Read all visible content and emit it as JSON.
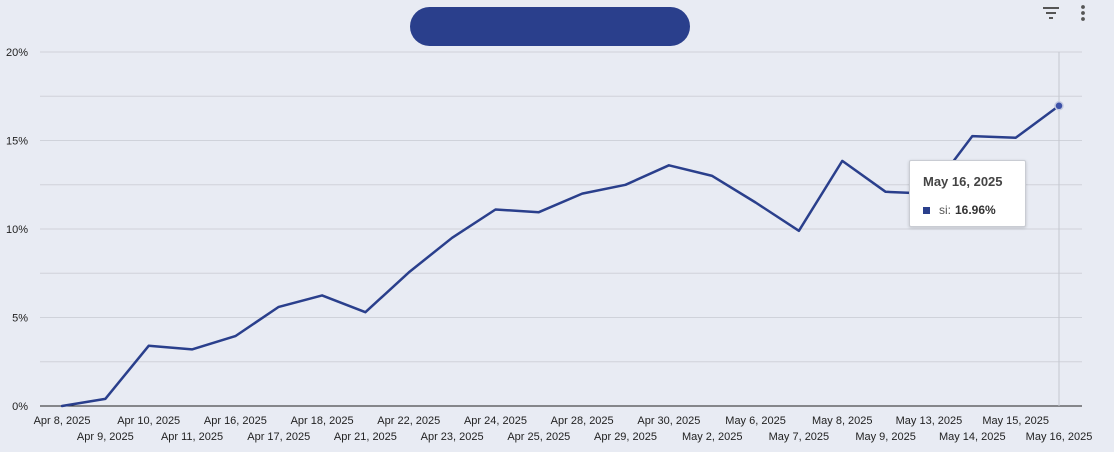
{
  "colors": {
    "background": "#e8ebf3",
    "series": "#2a3f8c",
    "grid": "#cfd2da",
    "axis": "#222222",
    "hover_line": "#c4c7cf"
  },
  "icons": [
    "filter-icon",
    "more-vert-icon"
  ],
  "tooltip": {
    "date": "May 16, 2025",
    "series_label": "si:",
    "value_text": "16.96%"
  },
  "chart_data": {
    "type": "line",
    "title": "",
    "xlabel": "",
    "ylabel": "",
    "grid": true,
    "ylim": [
      0,
      20
    ],
    "y_ticks": [
      "0%",
      "5%",
      "10%",
      "15%",
      "20%"
    ],
    "x": [
      "Apr 8, 2025",
      "Apr 9, 2025",
      "Apr 10, 2025",
      "Apr 11, 2025",
      "Apr 16, 2025",
      "Apr 17, 2025",
      "Apr 18, 2025",
      "Apr 21, 2025",
      "Apr 22, 2025",
      "Apr 23, 2025",
      "Apr 24, 2025",
      "Apr 25, 2025",
      "Apr 28, 2025",
      "Apr 29, 2025",
      "Apr 30, 2025",
      "May 2, 2025",
      "May 6, 2025",
      "May 7, 2025",
      "May 8, 2025",
      "May 9, 2025",
      "May 13, 2025",
      "May 14, 2025",
      "May 15, 2025",
      "May 16, 2025"
    ],
    "series": [
      {
        "name": "si",
        "values": [
          0.0,
          0.4,
          3.4,
          3.2,
          3.95,
          5.6,
          6.25,
          5.3,
          7.55,
          9.5,
          11.1,
          10.95,
          12.0,
          12.5,
          13.6,
          13.0,
          11.5,
          9.9,
          13.85,
          12.1,
          12.0,
          15.25,
          15.15,
          16.96
        ]
      }
    ],
    "highlight_index": 23
  }
}
